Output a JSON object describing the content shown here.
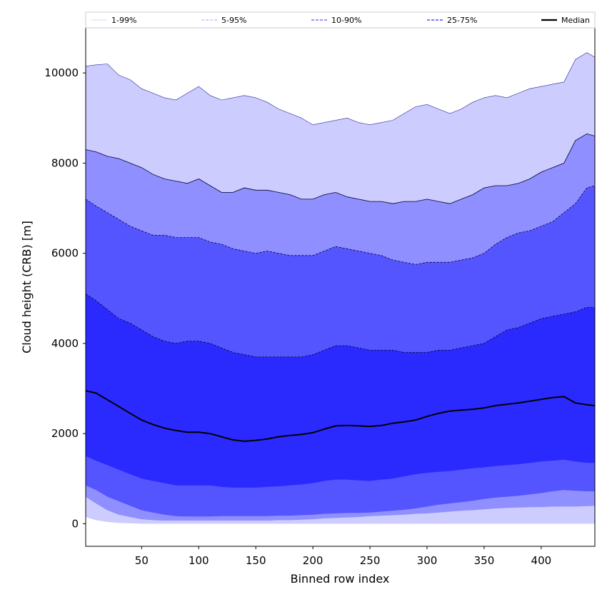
{
  "chart_data": {
    "type": "area",
    "title": "",
    "xlabel": "Binned row index",
    "ylabel": "Cloud height (CRB) [m]",
    "xlim": [
      1,
      447
    ],
    "ylim": [
      -500,
      11000
    ],
    "xticks": [
      50,
      100,
      150,
      200,
      250,
      300,
      350,
      400
    ],
    "yticks": [
      0,
      2000,
      4000,
      6000,
      8000,
      10000
    ],
    "grid": false,
    "legend_position": "top, outside plot area, single row",
    "x": [
      1,
      10,
      20,
      30,
      40,
      50,
      60,
      70,
      80,
      90,
      100,
      110,
      120,
      130,
      140,
      150,
      160,
      170,
      180,
      190,
      200,
      210,
      220,
      230,
      240,
      250,
      260,
      270,
      280,
      290,
      300,
      310,
      320,
      330,
      340,
      350,
      360,
      370,
      380,
      390,
      400,
      410,
      420,
      430,
      440,
      447
    ],
    "bands": [
      {
        "name": "1-99%",
        "color": "#ccccff",
        "upper": [
          10150,
          10180,
          10200,
          9950,
          9850,
          9650,
          9550,
          9450,
          9400,
          9550,
          9700,
          9500,
          9400,
          9450,
          9500,
          9450,
          9350,
          9200,
          9100,
          9000,
          8850,
          8900,
          8950,
          9000,
          8900,
          8850,
          8900,
          8950,
          9100,
          9250,
          9300,
          9200,
          9100,
          9200,
          9350,
          9450,
          9500,
          9450,
          9550,
          9650,
          9700,
          9750,
          9800,
          10300,
          10450,
          10350
        ],
        "lower": [
          150,
          80,
          40,
          20,
          10,
          0,
          0,
          0,
          0,
          0,
          0,
          0,
          0,
          0,
          0,
          0,
          0,
          0,
          0,
          0,
          0,
          0,
          0,
          0,
          0,
          0,
          0,
          0,
          0,
          0,
          0,
          0,
          0,
          0,
          0,
          0,
          0,
          0,
          0,
          0,
          0,
          0,
          0,
          0,
          0,
          0
        ]
      },
      {
        "name": "5-95%",
        "color": "#8f8fff",
        "upper": [
          8300,
          8250,
          8150,
          8100,
          8000,
          7900,
          7750,
          7650,
          7600,
          7550,
          7650,
          7500,
          7350,
          7350,
          7450,
          7400,
          7400,
          7350,
          7300,
          7200,
          7200,
          7300,
          7350,
          7250,
          7200,
          7150,
          7150,
          7100,
          7150,
          7150,
          7200,
          7150,
          7100,
          7200,
          7300,
          7450,
          7500,
          7500,
          7550,
          7650,
          7800,
          7900,
          8000,
          8500,
          8650,
          8600
        ],
        "lower": [
          600,
          450,
          300,
          200,
          150,
          100,
          80,
          70,
          70,
          70,
          70,
          70,
          70,
          70,
          70,
          70,
          70,
          80,
          80,
          90,
          100,
          120,
          130,
          140,
          150,
          170,
          180,
          190,
          200,
          220,
          230,
          250,
          270,
          290,
          300,
          320,
          340,
          350,
          360,
          370,
          370,
          380,
          380,
          380,
          390,
          400
        ]
      },
      {
        "name": "10-90%",
        "color": "#5555ff",
        "upper": [
          7200,
          7050,
          6900,
          6750,
          6600,
          6500,
          6400,
          6400,
          6350,
          6350,
          6350,
          6250,
          6200,
          6100,
          6050,
          6000,
          6050,
          6000,
          5950,
          5950,
          5950,
          6050,
          6150,
          6100,
          6050,
          6000,
          5950,
          5850,
          5800,
          5750,
          5800,
          5800,
          5800,
          5850,
          5900,
          6000,
          6200,
          6350,
          6450,
          6500,
          6600,
          6700,
          6900,
          7100,
          7450,
          7500
        ],
        "lower": [
          850,
          750,
          600,
          500,
          400,
          300,
          250,
          200,
          170,
          160,
          160,
          160,
          170,
          170,
          170,
          170,
          170,
          180,
          180,
          190,
          200,
          220,
          230,
          240,
          240,
          250,
          270,
          290,
          310,
          340,
          380,
          420,
          450,
          480,
          510,
          550,
          580,
          600,
          620,
          650,
          680,
          720,
          750,
          730,
          720,
          720
        ]
      },
      {
        "name": "25-75%",
        "color": "#2a2aff",
        "upper": [
          5100,
          4950,
          4750,
          4550,
          4450,
          4300,
          4150,
          4050,
          4000,
          4050,
          4050,
          4000,
          3900,
          3800,
          3750,
          3700,
          3700,
          3700,
          3700,
          3700,
          3750,
          3850,
          3950,
          3950,
          3900,
          3850,
          3850,
          3850,
          3800,
          3800,
          3800,
          3850,
          3850,
          3900,
          3950,
          4000,
          4150,
          4300,
          4350,
          4450,
          4550,
          4600,
          4650,
          4700,
          4800,
          4800
        ],
        "lower": [
          1500,
          1400,
          1300,
          1200,
          1100,
          1000,
          950,
          900,
          850,
          850,
          850,
          850,
          820,
          800,
          800,
          800,
          820,
          830,
          850,
          870,
          900,
          950,
          980,
          980,
          960,
          950,
          980,
          1000,
          1050,
          1100,
          1130,
          1150,
          1170,
          1200,
          1230,
          1250,
          1280,
          1300,
          1320,
          1350,
          1380,
          1400,
          1420,
          1380,
          1350,
          1350
        ]
      }
    ],
    "series": [
      {
        "name": "Median",
        "color": "#000000",
        "values": [
          2950,
          2900,
          2750,
          2600,
          2450,
          2300,
          2200,
          2120,
          2070,
          2030,
          2030,
          2000,
          1930,
          1860,
          1830,
          1850,
          1880,
          1930,
          1960,
          1980,
          2020,
          2100,
          2170,
          2180,
          2170,
          2160,
          2180,
          2230,
          2260,
          2300,
          2380,
          2450,
          2500,
          2520,
          2540,
          2570,
          2620,
          2650,
          2680,
          2720,
          2760,
          2800,
          2820,
          2680,
          2640,
          2620
        ]
      }
    ],
    "legend": [
      {
        "label": "1-99%",
        "style": "thin solid",
        "color": "#ccccff"
      },
      {
        "label": "5-95%",
        "style": "thin dashed",
        "color": "#8f8fff"
      },
      {
        "label": "10-90%",
        "style": "dashed",
        "color": "#5555ff"
      },
      {
        "label": "25-75%",
        "style": "dashed",
        "color": "#2a2aff"
      },
      {
        "label": "Median",
        "style": "thick solid",
        "color": "#000000"
      }
    ]
  }
}
